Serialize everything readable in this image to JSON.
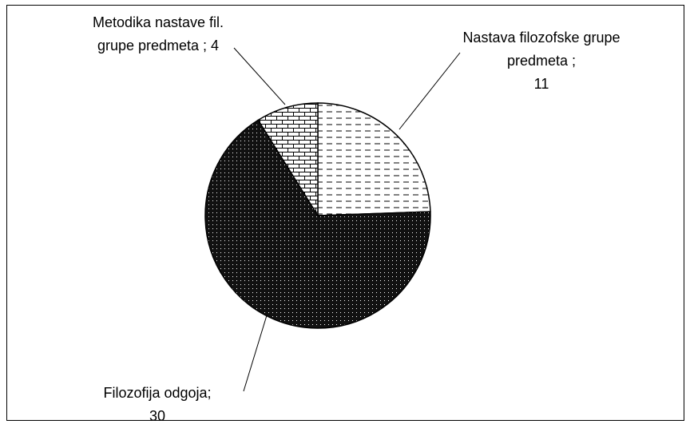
{
  "chart_data": {
    "type": "pie",
    "categories": [
      "Nastava filozofske grupe predmeta ;",
      "Filozofija odgoja;",
      "Metodika nastave fil. grupe predmeta ;"
    ],
    "values": [
      11,
      30,
      4
    ],
    "patterns": [
      "dashes",
      "dots",
      "bricks"
    ]
  }
}
